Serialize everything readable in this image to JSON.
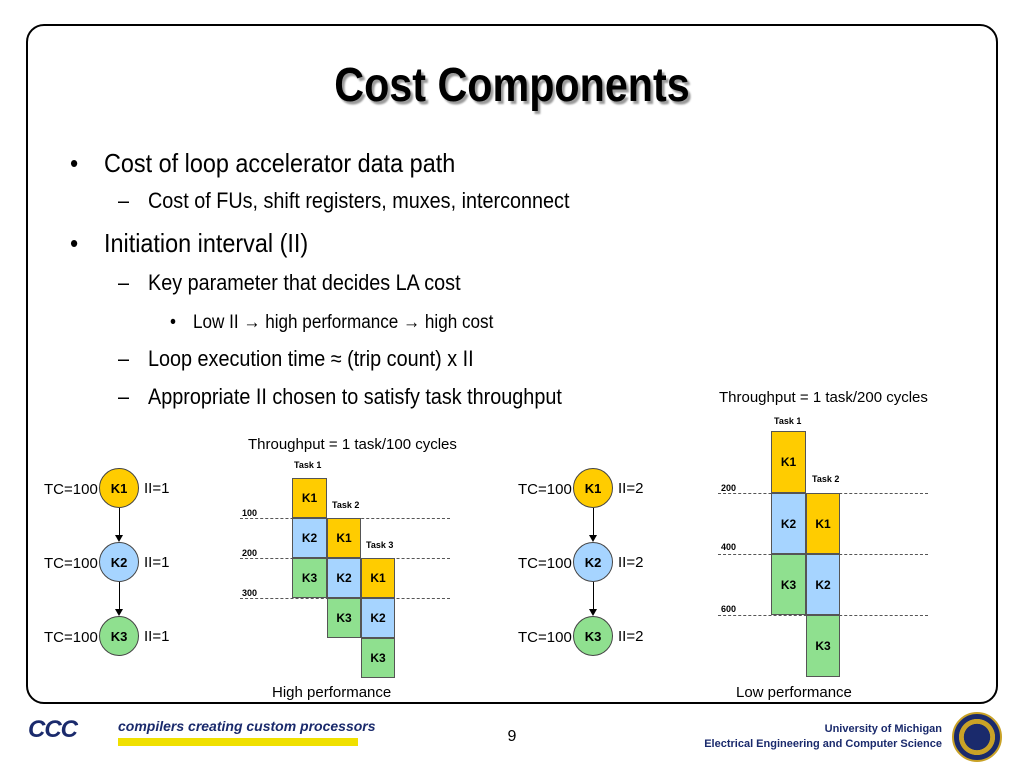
{
  "slide": {
    "title": "Cost Components",
    "bullets": {
      "b1": "Cost of loop accelerator data path",
      "b1_1": "Cost of FUs, shift registers, muxes, interconnect",
      "b2": "Initiation interval (II)",
      "b2_1": "Key parameter that decides LA cost",
      "b2_1_1": "Low II → high performance → high cost",
      "b2_2": "Loop execution time ≈ (trip count) x II",
      "b2_3": "Appropriate II chosen to satisfy task throughput"
    },
    "bullet_markers": {
      "dot": "•",
      "dash": "–"
    }
  },
  "left_graph": {
    "nodes": [
      "K1",
      "K2",
      "K3"
    ],
    "tc": [
      "TC=100",
      "TC=100",
      "TC=100"
    ],
    "ii": [
      "II=1",
      "II=1",
      "II=1"
    ]
  },
  "right_graph": {
    "nodes": [
      "K1",
      "K2",
      "K3"
    ],
    "tc": [
      "TC=100",
      "TC=100",
      "TC=100"
    ],
    "ii": [
      "II=2",
      "II=2",
      "II=2"
    ]
  },
  "high_perf": {
    "throughput": "Throughput = 1 task/100 cycles",
    "caption": "High performance",
    "tasks": [
      "Task 1",
      "Task 2",
      "Task 3"
    ],
    "ticks": [
      "100",
      "200",
      "300"
    ],
    "col1": [
      "K1",
      "K2",
      "K3"
    ],
    "col2": [
      "K1",
      "K2",
      "K3"
    ],
    "col3": [
      "K1",
      "K2",
      "K3"
    ]
  },
  "low_perf": {
    "throughput": "Throughput = 1 task/200 cycles",
    "caption": "Low performance",
    "tasks": [
      "Task 1",
      "Task 2"
    ],
    "ticks": [
      "200",
      "400",
      "600"
    ],
    "col1": [
      "K1",
      "K2",
      "K3"
    ],
    "col2": [
      "K1",
      "K2",
      "K3"
    ]
  },
  "footer": {
    "logo": "CCC",
    "tagline": "compilers creating custom processors",
    "page": "9",
    "univ_line1": "University of Michigan",
    "univ_line2": "Electrical Engineering and Computer Science"
  },
  "colors": {
    "k1": "#ffcc00",
    "k2": "#a6d4ff",
    "k3": "#8fe08f"
  }
}
